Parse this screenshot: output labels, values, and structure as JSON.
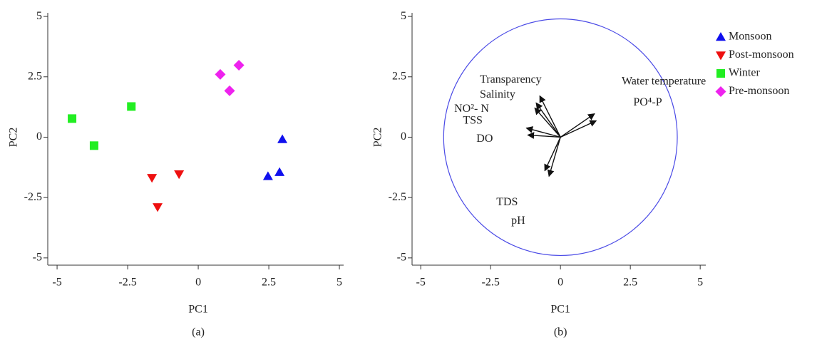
{
  "chart_data": [
    {
      "type": "scatter",
      "caption": "(a)",
      "x_label": "PC1",
      "y_label": "PC2",
      "xlim": [
        -5.33,
        5.15
      ],
      "ylim": [
        -5.3,
        5.15
      ],
      "xticks": [
        -5,
        -2.5,
        0,
        2.5,
        5
      ],
      "yticks": [
        -5,
        -2.5,
        0,
        2.5,
        5
      ],
      "series": [
        {
          "name": "Monsoon",
          "color": "#1010ee",
          "marker": "triangle-up",
          "x": [
            2.98,
            2.47,
            2.88
          ],
          "values": [
            -0.09,
            -1.62,
            -1.45
          ]
        },
        {
          "name": "Post-monsoon",
          "color": "#ee1010",
          "marker": "triangle-down",
          "x": [
            -1.64,
            -0.68,
            -1.44
          ],
          "values": [
            -1.68,
            -1.53,
            -2.89
          ]
        },
        {
          "name": "Winter",
          "color": "#22ee22",
          "marker": "square",
          "x": [
            -4.47,
            -3.69,
            -2.37
          ],
          "values": [
            0.77,
            -0.35,
            1.27
          ]
        },
        {
          "name": "Pre-monsoon",
          "color": "#ee22ee",
          "marker": "diamond",
          "x": [
            0.78,
            1.44,
            1.11
          ],
          "values": [
            2.6,
            2.98,
            1.92
          ]
        }
      ]
    },
    {
      "type": "biplot",
      "caption": "(b)",
      "x_label": "PC1",
      "y_label": "PC2",
      "xlim": [
        -5.31,
        5.2
      ],
      "ylim": [
        -5.3,
        5.15
      ],
      "xticks": [
        -5,
        -2.5,
        0,
        2.5,
        5
      ],
      "yticks": [
        -5,
        -2.5,
        0,
        2.5,
        5
      ],
      "circle": {
        "color": "#4a4ae6",
        "rx": 4.18,
        "ry": 4.9
      },
      "loadings": [
        {
          "name": "Transparency",
          "x": -0.74,
          "y": 1.71
        },
        {
          "name": "Salinity",
          "x": -0.87,
          "y": 1.42
        },
        {
          "name": "NO²- N",
          "x": -0.92,
          "y": 1.21
        },
        {
          "name": "TSS",
          "x": -1.22,
          "y": 0.38
        },
        {
          "name": "DO",
          "x": -1.17,
          "y": 0.09
        },
        {
          "name": "TDS",
          "x": -0.56,
          "y": -1.39
        },
        {
          "name": "pH",
          "x": -0.41,
          "y": -1.62
        },
        {
          "name": "Water temperature",
          "x": 1.22,
          "y": 0.97
        },
        {
          "name": "PO⁴-P",
          "x": 1.28,
          "y": 0.68
        }
      ]
    }
  ]
}
